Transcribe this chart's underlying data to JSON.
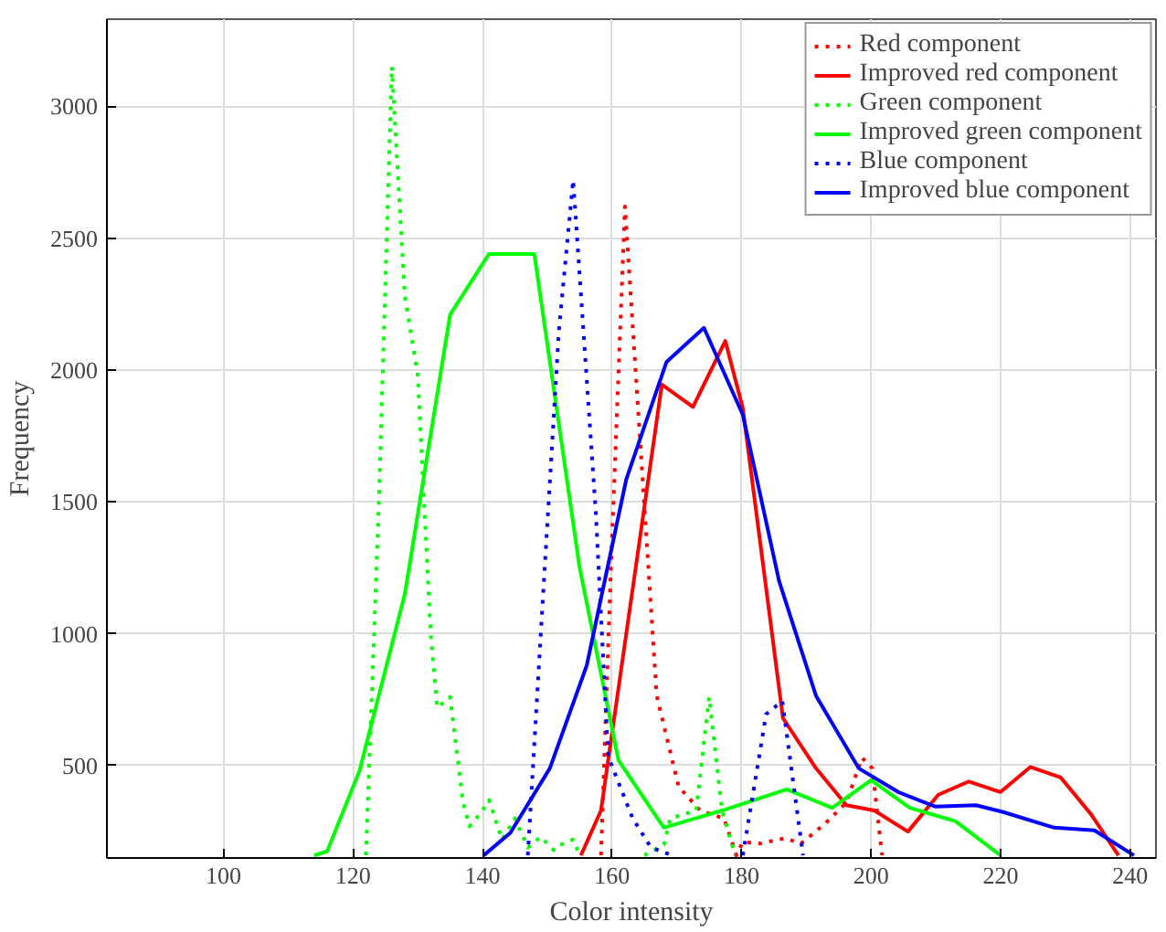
{
  "chart_data": {
    "type": "line",
    "xlabel": "Color intensity",
    "ylabel": "Frequency",
    "xlim": [
      82,
      244
    ],
    "ylim": [
      150,
      3330
    ],
    "xticks": [
      100,
      120,
      140,
      160,
      180,
      200,
      220,
      240
    ],
    "yticks": [
      500,
      1000,
      1500,
      2000,
      2500,
      3000
    ],
    "grid": true,
    "legend": "top right",
    "series": [
      {
        "name": "Red component",
        "color": "#ff0000",
        "line_style": "dotted",
        "x": [
          158.3,
          159.8,
          162,
          166.9,
          170.3,
          173.6,
          177.3,
          179.2,
          180.2,
          183,
          186.7,
          189.2,
          192.9,
          196.2,
          198.6,
          200.2,
          201.7
        ],
        "values": [
          160,
          1230,
          2620,
          765,
          420,
          330,
          300,
          160,
          210,
          205,
          225,
          205,
          280,
          360,
          530,
          490,
          160
        ]
      },
      {
        "name": "Improved red component",
        "color": "#ff0000",
        "line_style": "solid",
        "x": [
          155.2,
          158.3,
          167.7,
          172.5,
          177.5,
          180.2,
          186.4,
          191.5,
          196.2,
          200.5,
          205.7,
          210.4,
          215.1,
          220,
          224.6,
          229.3,
          234,
          238.2
        ],
        "values": [
          160,
          330,
          1945,
          1860,
          2110,
          1855,
          680,
          490,
          350,
          330,
          250,
          390,
          440,
          400,
          495,
          455,
          315,
          160
        ]
      },
      {
        "name": "Green component",
        "color": "#00ff00",
        "line_style": "dotted",
        "x": [
          122,
          124,
          126,
          128,
          130,
          132,
          133,
          135,
          137,
          138,
          140,
          141,
          143,
          144,
          145,
          147,
          149,
          151,
          152,
          154,
          155,
          160,
          165,
          168,
          169,
          173,
          175,
          177,
          179
        ],
        "values": [
          160,
          1500,
          3150,
          2280,
          1980,
          1000,
          720,
          760,
          360,
          270,
          330,
          370,
          220,
          260,
          300,
          190,
          230,
          180,
          200,
          220,
          160,
          null,
          160,
          200,
          300,
          330,
          760,
          330,
          160
        ]
      },
      {
        "name": "Improved green component",
        "color": "#00ff00",
        "line_style": "solid",
        "x": [
          114,
          116,
          121,
          128,
          135,
          141,
          148,
          155,
          161,
          168,
          177,
          187,
          194,
          200,
          206,
          213,
          220
        ],
        "values": [
          160,
          175,
          480,
          1150,
          2210,
          2440,
          2440,
          1250,
          520,
          265,
          330,
          410,
          340,
          445,
          340,
          290,
          160
        ]
      },
      {
        "name": "Blue component",
        "color": "#0000ff",
        "line_style": "dotted",
        "x": [
          147,
          149,
          151.8,
          154,
          157.5,
          159.4,
          163.2,
          166,
          169.3,
          175,
          180.2,
          183.8,
          186.3,
          189.5
        ],
        "values": [
          160,
          1000,
          2150,
          2720,
          1460,
          535,
          300,
          190,
          160,
          null,
          160,
          695,
          745,
          160
        ]
      },
      {
        "name": "Improved blue component",
        "color": "#0000ff",
        "line_style": "solid",
        "x": [
          140.2,
          144.3,
          150.4,
          156.1,
          162.2,
          168.4,
          174.2,
          180.2,
          185.8,
          191.5,
          198.1,
          204.2,
          209.9,
          216.2,
          220.3,
          228.3,
          234.5,
          240.6
        ],
        "values": [
          160,
          245,
          490,
          880,
          1585,
          2030,
          2160,
          1830,
          1200,
          765,
          490,
          400,
          345,
          350,
          325,
          265,
          255,
          160
        ]
      }
    ]
  }
}
